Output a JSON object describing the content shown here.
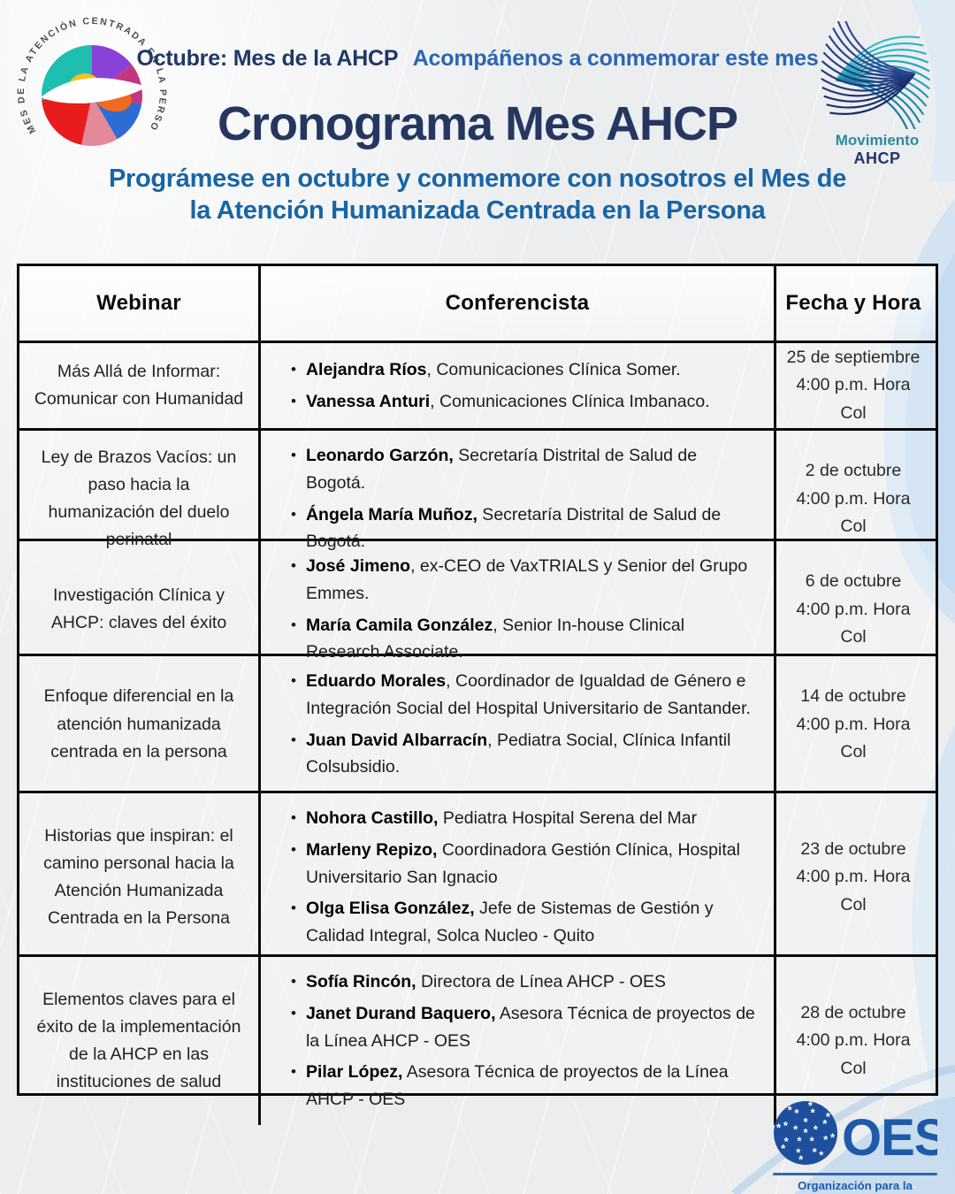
{
  "header": {
    "kicker_dark": "Octubre: Mes de la AHCP",
    "kicker_blue": "Acompáñenos a conmemorar este mes",
    "title": "Cronograma Mes AHCP",
    "subtitle": "Prográmese en octubre y conmemore con nosotros el Mes de la Atención Humanizada Centrada en la Persona"
  },
  "logo_left": {
    "ring_text": "MES DE LA ATENCIÓN CENTRADA EN LA PERSONA"
  },
  "logo_movimiento": {
    "name_line": "Movimiento",
    "acronym": "AHCP"
  },
  "logo_oes": {
    "acronym": "OES",
    "tagline": "Organización para la Excelencia de la Salud"
  },
  "misc": {
    "bullet": "•"
  },
  "colors": {
    "navy": "#253761",
    "kicker_dark": "#1f3864",
    "kicker_blue": "#2a66b0",
    "subtitle_blue": "#1765a6",
    "teal": "#2a8aa0",
    "oes_blue": "#1e5aa8",
    "table_border": "#0a0a0a",
    "ribbon_blue": "#cfe1f2"
  },
  "table": {
    "headers": [
      "Webinar",
      "Conferencista",
      "Fecha y Hora"
    ],
    "rows": [
      {
        "webinar": "Más Allá de Informar: Comunicar con Humanidad",
        "speakers": [
          {
            "name": "Alejandra Ríos",
            "detail": ", Comunicaciones Clínica Somer."
          },
          {
            "name": "Vanessa Anturi",
            "detail": ", Comunicaciones Clínica Imbanaco."
          }
        ],
        "date": "25 de septiembre",
        "time": "4:00 p.m. Hora Col"
      },
      {
        "webinar": "Ley de Brazos Vacíos: un paso hacia la humanización del duelo perinatal",
        "speakers": [
          {
            "name": "Leonardo Garzón,",
            "detail": " Secretaría Distrital de Salud de Bogotá."
          },
          {
            "name": "Ángela María Muñoz,",
            "detail": " Secretaría Distrital de Salud de Bogotá."
          }
        ],
        "date": "2 de octubre",
        "time": "4:00 p.m. Hora Col"
      },
      {
        "webinar": "Investigación Clínica y AHCP: claves del éxito",
        "speakers": [
          {
            "name": "José Jimeno",
            "detail": ",  ex-CEO de VaxTRIALS y Senior del Grupo Emmes."
          },
          {
            "name": "María Camila González",
            "detail": ", Senior In-house Clinical Research Associate."
          }
        ],
        "date": "6 de octubre",
        "time": "4:00 p.m. Hora Col"
      },
      {
        "webinar": "Enfoque diferencial en la atención humanizada centrada en la persona",
        "speakers": [
          {
            "name": "Eduardo Morales",
            "detail": ", Coordinador de Igualdad de Género e Integración Social del Hospital Universitario de Santander."
          },
          {
            "name": "Juan David Albarracín",
            "detail": ", Pediatra Social, Clínica Infantil Colsubsidio."
          }
        ],
        "date": "14 de octubre",
        "time": "4:00 p.m. Hora Col"
      },
      {
        "webinar": "Historias que inspiran: el camino personal hacia la Atención Humanizada Centrada en la Persona",
        "speakers": [
          {
            "name": "Nohora Castillo,",
            "detail": " Pediatra Hospital Serena del Mar"
          },
          {
            "name": "Marleny Repizo,",
            "detail": " Coordinadora Gestión Clínica, Hospital Universitario San Ignacio"
          },
          {
            "name": "Olga Elisa González,",
            "detail": " Jefe de Sistemas de Gestión y Calidad Integral, Solca Nucleo - Quito"
          }
        ],
        "date": "23 de octubre",
        "time": "4:00 p.m. Hora Col"
      },
      {
        "webinar": "Elementos claves para el éxito de la implementación de la AHCP en las instituciones de salud",
        "speakers": [
          {
            "name": "Sofía Rincón,",
            "detail": " Directora de Línea AHCP - OES"
          },
          {
            "name": "Janet Durand Baquero,",
            "detail": " Asesora Técnica de proyectos de la Línea AHCP - OES"
          },
          {
            "name": "Pilar López,",
            "detail": " Asesora Técnica de proyectos de la Línea AHCP - OES"
          }
        ],
        "date": "28 de octubre",
        "time": "4:00 p.m. Hora Col"
      }
    ]
  }
}
